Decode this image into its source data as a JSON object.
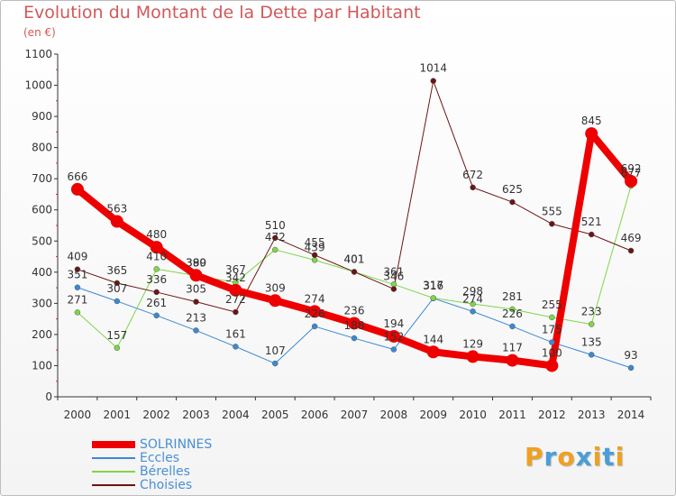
{
  "title": "Evolution du Montant de la Dette par Habitant",
  "subtitle": "(en €)",
  "logo": {
    "text": "Proxiti",
    "colors": [
      "#f0a020",
      "#4a9ed8",
      "#f0a020",
      "#4a9ed8",
      "#f0a020",
      "#4a9ed8",
      "#f0a020"
    ]
  },
  "chart_data": {
    "type": "line",
    "x": [
      "2000",
      "2001",
      "2002",
      "2003",
      "2004",
      "2005",
      "2006",
      "2007",
      "2008",
      "2009",
      "2010",
      "2011",
      "2012",
      "2013",
      "2014"
    ],
    "yticks": [
      "0",
      "100",
      "200",
      "300",
      "400",
      "500",
      "600",
      "700",
      "800",
      "900",
      "1000",
      "1100"
    ],
    "ylim": [
      0,
      1100
    ],
    "grid": false,
    "legend_position": "bottom-left",
    "series": [
      {
        "name": "SOLRINNES",
        "color": "#ee0000",
        "width": 8,
        "marker": 7,
        "values": [
          666,
          563,
          480,
          390,
          342,
          309,
          274,
          236,
          194,
          144,
          129,
          117,
          100,
          845,
          692
        ]
      },
      {
        "name": "Eccles",
        "color": "#3a8ad2",
        "width": 1,
        "marker": 3,
        "values": [
          351,
          307,
          261,
          213,
          161,
          107,
          226,
          188,
          152,
          316,
          274,
          226,
          175,
          135,
          93
        ]
      },
      {
        "name": "Bérelles",
        "color": "#7fd64a",
        "width": 1,
        "marker": 3,
        "values": [
          271,
          157,
          410,
          389,
          367,
          472,
          439,
          401,
          361,
          317,
          298,
          281,
          255,
          233,
          677
        ]
      },
      {
        "name": "Choisies",
        "color": "#6b1515",
        "width": 1,
        "marker": 3,
        "values": [
          409,
          365,
          336,
          305,
          272,
          510,
          455,
          401,
          346,
          1014,
          672,
          625,
          555,
          521,
          469
        ]
      }
    ],
    "labels": [
      {
        "s": 0,
        "i": 0,
        "text": "666"
      },
      {
        "s": 0,
        "i": 1,
        "text": "563"
      },
      {
        "s": 0,
        "i": 2,
        "text": "480"
      },
      {
        "s": 0,
        "i": 3,
        "text": "390"
      },
      {
        "s": 0,
        "i": 4,
        "text": "342"
      },
      {
        "s": 0,
        "i": 5,
        "text": "309"
      },
      {
        "s": 0,
        "i": 6,
        "text": "274"
      },
      {
        "s": 0,
        "i": 7,
        "text": "236"
      },
      {
        "s": 0,
        "i": 8,
        "text": "194"
      },
      {
        "s": 0,
        "i": 9,
        "text": "144"
      },
      {
        "s": 0,
        "i": 10,
        "text": "129"
      },
      {
        "s": 0,
        "i": 11,
        "text": "117"
      },
      {
        "s": 0,
        "i": 12,
        "text": "100"
      },
      {
        "s": 0,
        "i": 13,
        "text": "845"
      },
      {
        "s": 0,
        "i": 14,
        "text": "692"
      },
      {
        "s": 1,
        "i": 0,
        "text": "351"
      },
      {
        "s": 1,
        "i": 1,
        "text": "307"
      },
      {
        "s": 1,
        "i": 2,
        "text": "261"
      },
      {
        "s": 1,
        "i": 3,
        "text": "213"
      },
      {
        "s": 1,
        "i": 4,
        "text": "161"
      },
      {
        "s": 1,
        "i": 5,
        "text": "107"
      },
      {
        "s": 1,
        "i": 6,
        "text": "226"
      },
      {
        "s": 1,
        "i": 7,
        "text": "188"
      },
      {
        "s": 1,
        "i": 8,
        "text": "152"
      },
      {
        "s": 1,
        "i": 9,
        "text": "316"
      },
      {
        "s": 1,
        "i": 10,
        "text": "274"
      },
      {
        "s": 1,
        "i": 11,
        "text": "226"
      },
      {
        "s": 1,
        "i": 12,
        "text": "175"
      },
      {
        "s": 1,
        "i": 13,
        "text": "135"
      },
      {
        "s": 1,
        "i": 14,
        "text": "93"
      },
      {
        "s": 2,
        "i": 0,
        "text": "271"
      },
      {
        "s": 2,
        "i": 1,
        "text": "157"
      },
      {
        "s": 2,
        "i": 2,
        "text": "410"
      },
      {
        "s": 2,
        "i": 3,
        "text": "389"
      },
      {
        "s": 2,
        "i": 4,
        "text": "367"
      },
      {
        "s": 2,
        "i": 5,
        "text": "472"
      },
      {
        "s": 2,
        "i": 6,
        "text": "439"
      },
      {
        "s": 2,
        "i": 7,
        "text": "401"
      },
      {
        "s": 2,
        "i": 8,
        "text": "361"
      },
      {
        "s": 2,
        "i": 9,
        "text": "317"
      },
      {
        "s": 2,
        "i": 10,
        "text": "298"
      },
      {
        "s": 2,
        "i": 11,
        "text": "281"
      },
      {
        "s": 2,
        "i": 12,
        "text": "255"
      },
      {
        "s": 2,
        "i": 13,
        "text": "233"
      },
      {
        "s": 2,
        "i": 14,
        "text": "677"
      },
      {
        "s": 3,
        "i": 0,
        "text": "409"
      },
      {
        "s": 3,
        "i": 1,
        "text": "365"
      },
      {
        "s": 3,
        "i": 2,
        "text": "336"
      },
      {
        "s": 3,
        "i": 3,
        "text": "305"
      },
      {
        "s": 3,
        "i": 4,
        "text": "272"
      },
      {
        "s": 3,
        "i": 5,
        "text": "510"
      },
      {
        "s": 3,
        "i": 6,
        "text": "455"
      },
      {
        "s": 3,
        "i": 7,
        "text": "401"
      },
      {
        "s": 3,
        "i": 8,
        "text": "346"
      },
      {
        "s": 3,
        "i": 9,
        "text": "1014"
      },
      {
        "s": 3,
        "i": 10,
        "text": "672"
      },
      {
        "s": 3,
        "i": 11,
        "text": "625"
      },
      {
        "s": 3,
        "i": 12,
        "text": "555"
      },
      {
        "s": 3,
        "i": 13,
        "text": "521"
      },
      {
        "s": 3,
        "i": 14,
        "text": "469"
      }
    ]
  }
}
